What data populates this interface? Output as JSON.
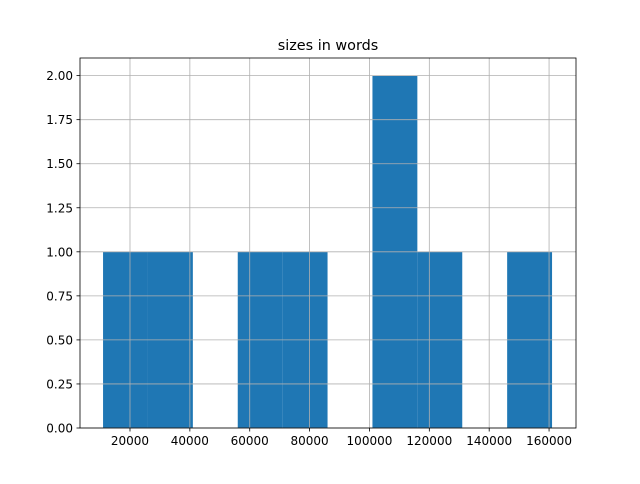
{
  "chart_data": {
    "type": "bar",
    "subtype": "histogram",
    "title": "sizes in words",
    "xlabel": "",
    "ylabel": "",
    "bin_edges": [
      11000,
      26000,
      41000,
      56000,
      71000,
      86000,
      101000,
      116000,
      131000,
      146000,
      161000
    ],
    "values": [
      1,
      1,
      0,
      1,
      1,
      0,
      2,
      1,
      0,
      1
    ],
    "xlim": [
      3300,
      169000
    ],
    "ylim": [
      0,
      2.1
    ],
    "xticks": [
      20000,
      40000,
      60000,
      80000,
      100000,
      120000,
      140000,
      160000
    ],
    "xtick_labels": [
      "20000",
      "40000",
      "60000",
      "80000",
      "100000",
      "120000",
      "140000",
      "160000"
    ],
    "yticks": [
      0,
      0.25,
      0.5,
      0.75,
      1.0,
      1.25,
      1.5,
      1.75,
      2.0
    ],
    "ytick_labels": [
      "0.00",
      "0.25",
      "0.50",
      "0.75",
      "1.00",
      "1.25",
      "1.50",
      "1.75",
      "2.00"
    ],
    "grid": true,
    "bar_color": "#1f77b4",
    "grid_color": "#b0b0b0"
  }
}
